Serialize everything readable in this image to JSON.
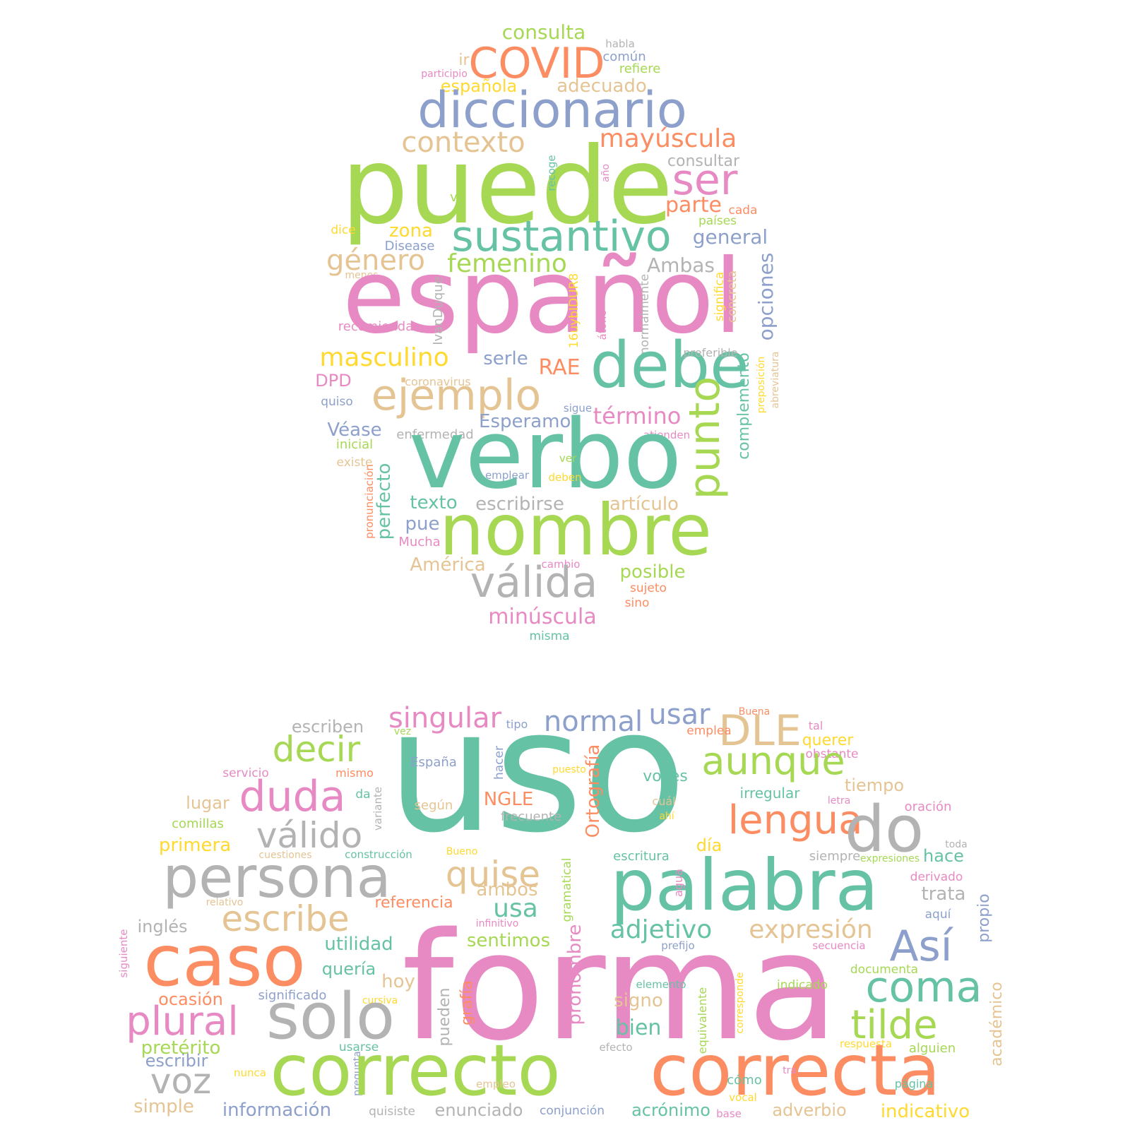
{
  "palette": {
    "teal": "#66c2a5",
    "orange": "#fc8d62",
    "blue": "#8da0cb",
    "pink": "#e78ac3",
    "green": "#a6d854",
    "yellow": "#ffd92f",
    "tan": "#e5c494",
    "gray": "#b3b3b3"
  },
  "words": [
    {
      "text": "consulta",
      "color": "green"
    },
    {
      "text": "habla",
      "color": "gray"
    },
    {
      "text": "COVID",
      "color": "orange"
    },
    {
      "text": "común",
      "color": "blue"
    },
    {
      "text": "ir",
      "color": "tan"
    },
    {
      "text": "refiere",
      "color": "green"
    },
    {
      "text": "participio",
      "color": "pink"
    },
    {
      "text": "española",
      "color": "yellow"
    },
    {
      "text": "adecuado",
      "color": "tan"
    },
    {
      "text": "diccionario",
      "color": "blue"
    },
    {
      "text": "contexto",
      "color": "tan"
    },
    {
      "text": "mayúscula",
      "color": "orange"
    },
    {
      "text": "consultar",
      "color": "gray"
    },
    {
      "text": "puede",
      "color": "green"
    },
    {
      "text": "ser",
      "color": "pink"
    },
    {
      "text": "recoge",
      "color": "teal"
    },
    {
      "text": "año",
      "color": "pink"
    },
    {
      "text": "va",
      "color": "green"
    },
    {
      "text": "parte",
      "color": "orange"
    },
    {
      "text": "cada",
      "color": "orange"
    },
    {
      "text": "dice",
      "color": "yellow"
    },
    {
      "text": "zona",
      "color": "yellow"
    },
    {
      "text": "países",
      "color": "green"
    },
    {
      "text": "sustantivo",
      "color": "teal"
    },
    {
      "text": "general",
      "color": "blue"
    },
    {
      "text": "Disease",
      "color": "blue"
    },
    {
      "text": "género",
      "color": "tan"
    },
    {
      "text": "femenino",
      "color": "green"
    },
    {
      "text": "Ambas",
      "color": "gray"
    },
    {
      "text": "menos",
      "color": "tan"
    },
    {
      "text": "español",
      "color": "pink"
    },
    {
      "text": "opciones",
      "color": "blue"
    },
    {
      "text": "significa",
      "color": "yellow"
    },
    {
      "text": "concreta",
      "color": "tan"
    },
    {
      "text": "IvanDuque",
      "color": "gray"
    },
    {
      "text": "16uybIDUR8",
      "color": "yellow"
    },
    {
      "text": "átono",
      "color": "pink"
    },
    {
      "text": "normalmente",
      "color": "gray"
    },
    {
      "text": "recomienda",
      "color": "pink"
    },
    {
      "text": "masculino",
      "color": "yellow"
    },
    {
      "text": "serle",
      "color": "blue"
    },
    {
      "text": "debe",
      "color": "teal"
    },
    {
      "text": "preferible",
      "color": "gray"
    },
    {
      "text": "RAE",
      "color": "orange"
    },
    {
      "text": "DPD",
      "color": "pink"
    },
    {
      "text": "coronavirus",
      "color": "tan"
    },
    {
      "text": "ejemplo",
      "color": "tan"
    },
    {
      "text": "complemento",
      "color": "teal"
    },
    {
      "text": "preposición",
      "color": "yellow"
    },
    {
      "text": "abreviatura",
      "color": "tan"
    },
    {
      "text": "quiso",
      "color": "blue"
    },
    {
      "text": "sigue",
      "color": "blue"
    },
    {
      "text": "término",
      "color": "pink"
    },
    {
      "text": "Véase",
      "color": "blue"
    },
    {
      "text": "Esperamos",
      "color": "blue"
    },
    {
      "text": "enfermedad",
      "color": "gray"
    },
    {
      "text": "atienden",
      "color": "pink"
    },
    {
      "text": "inicial",
      "color": "green"
    },
    {
      "text": "punto",
      "color": "green"
    },
    {
      "text": "existe",
      "color": "tan"
    },
    {
      "text": "verbo",
      "color": "teal"
    },
    {
      "text": "ver",
      "color": "green"
    },
    {
      "text": "pronunciación",
      "color": "orange"
    },
    {
      "text": "emplear",
      "color": "blue"
    },
    {
      "text": "deben",
      "color": "yellow"
    },
    {
      "text": "perfecto",
      "color": "teal"
    },
    {
      "text": "texto",
      "color": "teal"
    },
    {
      "text": "escribirse",
      "color": "gray"
    },
    {
      "text": "artículo",
      "color": "tan"
    },
    {
      "text": "pue",
      "color": "blue"
    },
    {
      "text": "nombre",
      "color": "green"
    },
    {
      "text": "Mucha",
      "color": "pink"
    },
    {
      "text": "cambio",
      "color": "pink"
    },
    {
      "text": "América",
      "color": "tan"
    },
    {
      "text": "posible",
      "color": "green"
    },
    {
      "text": "válida",
      "color": "gray"
    },
    {
      "text": "sujeto",
      "color": "orange"
    },
    {
      "text": "sino",
      "color": "orange"
    },
    {
      "text": "minúscula",
      "color": "pink"
    },
    {
      "text": "misma",
      "color": "teal"
    },
    {
      "text": "Buena",
      "color": "orange"
    },
    {
      "text": "singular",
      "color": "pink"
    },
    {
      "text": "usar",
      "color": "blue"
    },
    {
      "text": "normal",
      "color": "blue"
    },
    {
      "text": "escriben",
      "color": "gray"
    },
    {
      "text": "tipo",
      "color": "blue"
    },
    {
      "text": "tal",
      "color": "pink"
    },
    {
      "text": "DLE",
      "color": "tan"
    },
    {
      "text": "emplea",
      "color": "orange"
    },
    {
      "text": "vez",
      "color": "green"
    },
    {
      "text": "querer",
      "color": "yellow"
    },
    {
      "text": "decir",
      "color": "green"
    },
    {
      "text": "uso",
      "color": "teal"
    },
    {
      "text": "obstante",
      "color": "pink"
    },
    {
      "text": "hacer",
      "color": "blue"
    },
    {
      "text": "España",
      "color": "blue"
    },
    {
      "text": "servicio",
      "color": "pink"
    },
    {
      "text": "mismo",
      "color": "orange"
    },
    {
      "text": "puesto",
      "color": "yellow"
    },
    {
      "text": "Ortografía",
      "color": "orange"
    },
    {
      "text": "aunque",
      "color": "green"
    },
    {
      "text": "voces",
      "color": "teal"
    },
    {
      "text": "tiempo",
      "color": "tan"
    },
    {
      "text": "variante",
      "color": "gray"
    },
    {
      "text": "irregular",
      "color": "teal"
    },
    {
      "text": "duda",
      "color": "pink"
    },
    {
      "text": "da",
      "color": "teal"
    },
    {
      "text": "lugar",
      "color": "tan"
    },
    {
      "text": "NGLE",
      "color": "orange"
    },
    {
      "text": "según",
      "color": "tan"
    },
    {
      "text": "cuál",
      "color": "tan"
    },
    {
      "text": "letra",
      "color": "pink"
    },
    {
      "text": "oración",
      "color": "pink"
    },
    {
      "text": "lengua",
      "color": "orange"
    },
    {
      "text": "comillas",
      "color": "green"
    },
    {
      "text": "frecuente",
      "color": "gray"
    },
    {
      "text": "ahí",
      "color": "yellow"
    },
    {
      "text": "válido",
      "color": "gray"
    },
    {
      "text": "do",
      "color": "gray"
    },
    {
      "text": "primera",
      "color": "yellow"
    },
    {
      "text": "día",
      "color": "yellow"
    },
    {
      "text": "toda",
      "color": "gray"
    },
    {
      "text": "cuestiones",
      "color": "tan"
    },
    {
      "text": "construcción",
      "color": "teal"
    },
    {
      "text": "Bueno",
      "color": "yellow"
    },
    {
      "text": "escritura",
      "color": "teal"
    },
    {
      "text": "siempre",
      "color": "gray"
    },
    {
      "text": "hace",
      "color": "teal"
    },
    {
      "text": "expresiones",
      "color": "green"
    },
    {
      "text": "persona",
      "color": "gray"
    },
    {
      "text": "quise",
      "color": "tan"
    },
    {
      "text": "gramatical",
      "color": "green"
    },
    {
      "text": "palabra",
      "color": "teal"
    },
    {
      "text": "derivado",
      "color": "pink"
    },
    {
      "text": "ambos",
      "color": "tan"
    },
    {
      "text": "agua",
      "color": "pink"
    },
    {
      "text": "trata",
      "color": "gray"
    },
    {
      "text": "relativo",
      "color": "tan"
    },
    {
      "text": "referencia",
      "color": "orange"
    },
    {
      "text": "escribe",
      "color": "tan"
    },
    {
      "text": "usa",
      "color": "teal"
    },
    {
      "text": "aquí",
      "color": "blue"
    },
    {
      "text": "infinitivo",
      "color": "pink"
    },
    {
      "text": "adjetivo",
      "color": "teal"
    },
    {
      "text": "expresión",
      "color": "tan"
    },
    {
      "text": "inglés",
      "color": "gray"
    },
    {
      "text": "propio",
      "color": "blue"
    },
    {
      "text": "Así",
      "color": "blue"
    },
    {
      "text": "sentimos",
      "color": "green"
    },
    {
      "text": "utilidad",
      "color": "teal"
    },
    {
      "text": "siguiente",
      "color": "pink"
    },
    {
      "text": "prefijo",
      "color": "blue"
    },
    {
      "text": "secuencia",
      "color": "pink"
    },
    {
      "text": "caso",
      "color": "orange"
    },
    {
      "text": "quería",
      "color": "teal"
    },
    {
      "text": "forma",
      "color": "pink"
    },
    {
      "text": "documenta",
      "color": "green"
    },
    {
      "text": "pronombre",
      "color": "pink"
    },
    {
      "text": "coma",
      "color": "teal"
    },
    {
      "text": "hoy",
      "color": "tan"
    },
    {
      "text": "elemento",
      "color": "teal"
    },
    {
      "text": "indicado",
      "color": "green"
    },
    {
      "text": "significado",
      "color": "blue"
    },
    {
      "text": "ocasión",
      "color": "orange"
    },
    {
      "text": "signo",
      "color": "tan"
    },
    {
      "text": "corresponde",
      "color": "yellow"
    },
    {
      "text": "cursiva",
      "color": "yellow"
    },
    {
      "text": "plural",
      "color": "pink"
    },
    {
      "text": "solo",
      "color": "gray"
    },
    {
      "text": "pueden",
      "color": "gray"
    },
    {
      "text": "grafía",
      "color": "orange"
    },
    {
      "text": "tilde",
      "color": "green"
    },
    {
      "text": "bien",
      "color": "teal"
    },
    {
      "text": "equivalente",
      "color": "green"
    },
    {
      "text": "académico",
      "color": "tan"
    },
    {
      "text": "pretérito",
      "color": "green"
    },
    {
      "text": "usarse",
      "color": "teal"
    },
    {
      "text": "efecto",
      "color": "gray"
    },
    {
      "text": "respuesta",
      "color": "yellow"
    },
    {
      "text": "alguien",
      "color": "green"
    },
    {
      "text": "escribir",
      "color": "blue"
    },
    {
      "text": "pregunta",
      "color": "blue"
    },
    {
      "text": "voz",
      "color": "gray"
    },
    {
      "text": "nunca",
      "color": "yellow"
    },
    {
      "text": "correcto",
      "color": "green"
    },
    {
      "text": "correcta",
      "color": "orange"
    },
    {
      "text": "tra",
      "color": "pink"
    },
    {
      "text": "cómo",
      "color": "teal"
    },
    {
      "text": "empleo",
      "color": "tan"
    },
    {
      "text": "vocal",
      "color": "yellow"
    },
    {
      "text": "página",
      "color": "teal"
    },
    {
      "text": "simple",
      "color": "tan"
    },
    {
      "text": "información",
      "color": "blue"
    },
    {
      "text": "quisiste",
      "color": "gray"
    },
    {
      "text": "enunciado",
      "color": "gray"
    },
    {
      "text": "conjunción",
      "color": "blue"
    },
    {
      "text": "acrónimo",
      "color": "teal"
    },
    {
      "text": "base",
      "color": "pink"
    },
    {
      "text": "adverbio",
      "color": "tan"
    },
    {
      "text": "indicativo",
      "color": "yellow"
    }
  ]
}
